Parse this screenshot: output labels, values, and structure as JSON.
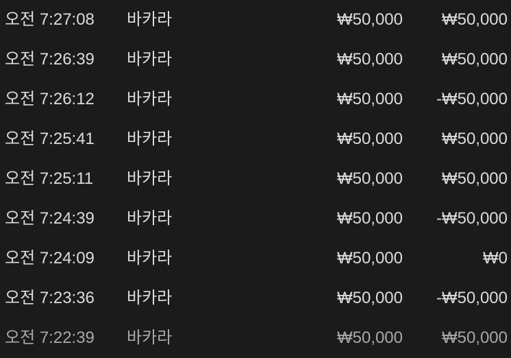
{
  "rows": [
    {
      "time": "오전 7:27:08",
      "game": "바카라",
      "bet": "₩50,000",
      "result": "₩50,000"
    },
    {
      "time": "오전 7:26:39",
      "game": "바카라",
      "bet": "₩50,000",
      "result": "₩50,000"
    },
    {
      "time": "오전 7:26:12",
      "game": "바카라",
      "bet": "₩50,000",
      "result": "-₩50,000"
    },
    {
      "time": "오전 7:25:41",
      "game": "바카라",
      "bet": "₩50,000",
      "result": "₩50,000"
    },
    {
      "time": "오전 7:25:11",
      "game": "바카라",
      "bet": "₩50,000",
      "result": "₩50,000"
    },
    {
      "time": "오전 7:24:39",
      "game": "바카라",
      "bet": "₩50,000",
      "result": "-₩50,000"
    },
    {
      "time": "오전 7:24:09",
      "game": "바카라",
      "bet": "₩50,000",
      "result": "₩0"
    },
    {
      "time": "오전 7:23:36",
      "game": "바카라",
      "bet": "₩50,000",
      "result": "-₩50,000"
    },
    {
      "time": "오전 7:22:39",
      "game": "바카라",
      "bet": "₩50,000",
      "result": "₩50,000"
    }
  ],
  "colors": {
    "background": "#1b1b1b",
    "text": "#dcdcdc"
  }
}
